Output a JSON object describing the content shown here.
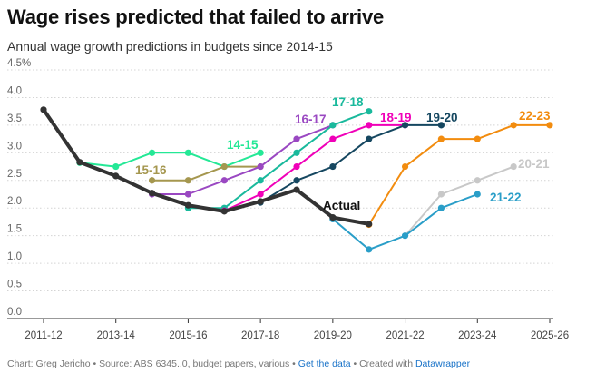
{
  "header": {
    "title": "Wage rises predicted that failed to arrive",
    "subtitle": "Annual wage growth predictions in budgets since 2014-15"
  },
  "footer": {
    "prefix": "Chart: Greg Jericho • Source: ABS 6345..0, budget papers, various • ",
    "get_data": "Get the data",
    "created_with": " • Created with ",
    "datawrapper": "Datawrapper"
  },
  "chart_data": {
    "type": "line",
    "title": "Wage rises predicted that failed to arrive",
    "subtitle": "Annual wage growth predictions in budgets since 2014-15",
    "x_tick_labels": [
      "2011-12",
      "2013-14",
      "2015-16",
      "2017-18",
      "2019-20",
      "2021-22",
      "2023-24",
      "2025-26"
    ],
    "x_tick_positions": [
      0,
      2,
      4,
      6,
      8,
      10,
      12,
      14
    ],
    "x_domain": [
      0,
      14
    ],
    "y_ticks": [
      0.0,
      0.5,
      1.0,
      1.5,
      2.0,
      2.5,
      3.0,
      3.5,
      4.0,
      4.5
    ],
    "y_tick_labels": [
      "0.0",
      "0.5",
      "1.0",
      "1.5",
      "2.0",
      "2.5",
      "3.0",
      "3.5",
      "4.0",
      "4.5%"
    ],
    "ylim": [
      0,
      4.5
    ],
    "grid": "horizontal dotted",
    "series": [
      {
        "name": "14-15",
        "color": "#24e896",
        "x": [
          1,
          2,
          3,
          4,
          5,
          6
        ],
        "values": [
          2.82,
          2.75,
          3.0,
          3.0,
          2.75,
          3.0
        ]
      },
      {
        "name": "15-16",
        "color": "#a5974f",
        "x": [
          3,
          4,
          5,
          6
        ],
        "values": [
          2.5,
          2.5,
          2.75,
          2.75
        ]
      },
      {
        "name": "16-17",
        "color": "#9a48c2",
        "x": [
          3,
          4,
          5,
          6,
          7,
          8
        ],
        "values": [
          2.25,
          2.25,
          2.5,
          2.75,
          3.25,
          3.5
        ]
      },
      {
        "name": "17-18",
        "color": "#19b99c",
        "x": [
          4,
          5,
          6,
          7,
          8,
          9
        ],
        "values": [
          2.0,
          2.0,
          2.5,
          3.0,
          3.5,
          3.75
        ]
      },
      {
        "name": "18-19",
        "color": "#f000b8",
        "x": [
          5,
          6,
          7,
          8,
          9,
          10
        ],
        "values": [
          1.95,
          2.25,
          2.75,
          3.25,
          3.5,
          3.5
        ]
      },
      {
        "name": "19-20",
        "color": "#154760",
        "x": [
          6,
          7,
          8,
          9,
          10,
          11
        ],
        "values": [
          2.1,
          2.5,
          2.75,
          3.25,
          3.5,
          3.5
        ]
      },
      {
        "name": "20-21",
        "color": "#c8c8c8",
        "x": [
          10,
          11,
          12,
          13
        ],
        "values": [
          1.5,
          2.25,
          2.5,
          2.75
        ]
      },
      {
        "name": "21-22",
        "color": "#2a9ec8",
        "x": [
          8,
          9,
          10,
          11,
          12
        ],
        "values": [
          1.8,
          1.25,
          1.5,
          2.0,
          2.25
        ]
      },
      {
        "name": "22-23",
        "color": "#f28c0f",
        "x": [
          9,
          10,
          11,
          12,
          13,
          14
        ],
        "values": [
          1.7,
          2.75,
          3.25,
          3.25,
          3.5,
          3.5
        ]
      },
      {
        "name": "Actual",
        "color": "#333333",
        "x": [
          0,
          1,
          2,
          3,
          4,
          5,
          6,
          7,
          8,
          9
        ],
        "values": [
          3.78,
          2.83,
          2.58,
          2.27,
          2.05,
          1.94,
          2.12,
          2.33,
          1.83,
          1.71
        ]
      }
    ]
  }
}
